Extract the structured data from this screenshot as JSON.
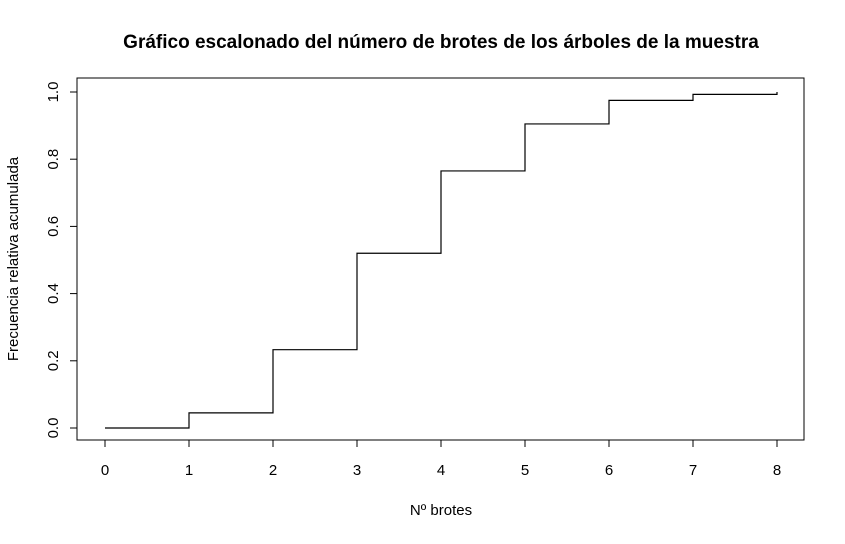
{
  "chart_data": {
    "type": "line",
    "subtype": "step",
    "title": "Gráfico escalonado del número de brotes de los árboles de la muestra",
    "xlabel": "Nº brotes",
    "ylabel": "Frecuencia relativa acumulada",
    "xlim": [
      0,
      8
    ],
    "ylim": [
      0,
      1
    ],
    "xticks": [
      "0",
      "1",
      "2",
      "3",
      "4",
      "5",
      "6",
      "7",
      "8"
    ],
    "yticks": [
      "0.0",
      "0.2",
      "0.4",
      "0.6",
      "0.8",
      "1.0"
    ],
    "grid": false,
    "series": [
      {
        "x": [
          0,
          1,
          2,
          3,
          4,
          5,
          6,
          7,
          8
        ],
        "values": [
          0.0,
          0.045,
          0.233,
          0.52,
          0.765,
          0.905,
          0.975,
          0.993,
          1.0
        ]
      }
    ]
  }
}
